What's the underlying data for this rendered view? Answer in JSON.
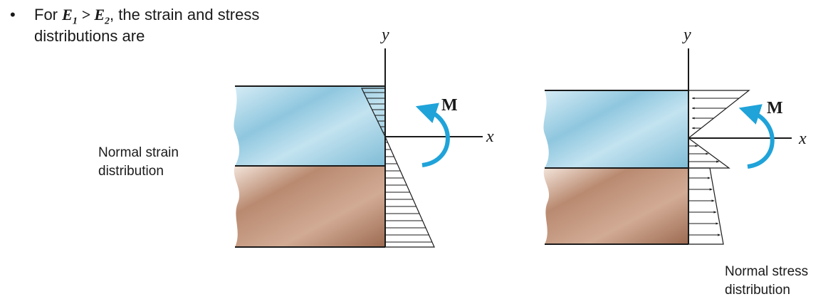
{
  "bullet": {
    "symbol": "•",
    "prefix": "For ",
    "e1": "E",
    "e1_sub": "1",
    "relation": " > ",
    "e2": "E",
    "e2_sub": "2",
    "suffix": ", the strain and stress",
    "line2": "distributions are"
  },
  "left_figure": {
    "y_axis": "y",
    "x_axis": "x",
    "moment": "M",
    "caption_line1": "Normal strain",
    "caption_line2": "distribution"
  },
  "right_figure": {
    "y_axis": "y",
    "x_axis": "x",
    "moment": "M",
    "caption_line1": "Normal stress",
    "caption_line2": "distribution"
  },
  "colors": {
    "top_material": "#a9d3e6",
    "bottom_material": "#b07a60",
    "moment_arrow": "#1fa3d9",
    "lines": "#1a1a1a"
  }
}
